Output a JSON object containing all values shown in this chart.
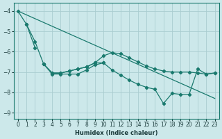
{
  "xlabel": "Humidex (Indice chaleur)",
  "bg_color": "#cce8ea",
  "grid_color": "#aacdd0",
  "line_color": "#1a7a6e",
  "xlim": [
    -0.5,
    23.5
  ],
  "ylim": [
    -9.3,
    -3.6
  ],
  "yticks": [
    -9,
    -8,
    -7,
    -6,
    -5,
    -4
  ],
  "xticks": [
    0,
    1,
    2,
    3,
    4,
    5,
    6,
    7,
    8,
    9,
    10,
    11,
    12,
    13,
    14,
    15,
    16,
    17,
    18,
    19,
    20,
    21,
    22,
    23
  ],
  "line1_x": [
    0,
    23
  ],
  "line1_y": [
    -4.0,
    -8.3
  ],
  "line2_x": [
    0,
    1,
    2,
    3,
    4,
    5,
    6,
    7,
    8,
    9,
    10,
    11,
    12,
    13,
    14,
    15,
    16,
    17,
    18,
    19,
    20,
    21,
    22,
    23
  ],
  "line2_y": [
    -4.0,
    -4.65,
    -5.5,
    -6.6,
    -7.05,
    -7.05,
    -6.95,
    -6.85,
    -6.75,
    -6.55,
    -6.2,
    -6.05,
    -6.1,
    -6.3,
    -6.5,
    -6.7,
    -6.85,
    -6.95,
    -7.0,
    -7.0,
    -7.0,
    -7.05,
    -7.1,
    -7.05
  ],
  "line3_x": [
    3,
    4,
    5,
    6,
    7,
    8,
    9,
    10,
    11,
    12,
    13,
    14,
    15,
    16,
    17,
    18,
    19,
    20,
    21,
    22,
    23
  ],
  "line3_y": [
    -6.6,
    -7.05,
    -7.05,
    -6.95,
    -6.85,
    -6.75,
    -6.55,
    -6.55,
    -6.9,
    -7.15,
    -7.4,
    -7.6,
    -7.75,
    -7.85,
    -8.55,
    -8.05,
    -8.1,
    -8.1,
    -6.85,
    -7.1,
    -7.05
  ],
  "line4_x": [
    1,
    2
  ],
  "line4_y": [
    -4.65,
    -5.8
  ],
  "line5_x": [
    3,
    4,
    5,
    6,
    7,
    8,
    9,
    10
  ],
  "line5_y": [
    -6.6,
    -7.1,
    -7.1,
    -7.1,
    -7.1,
    -6.9,
    -6.65,
    -6.55
  ]
}
